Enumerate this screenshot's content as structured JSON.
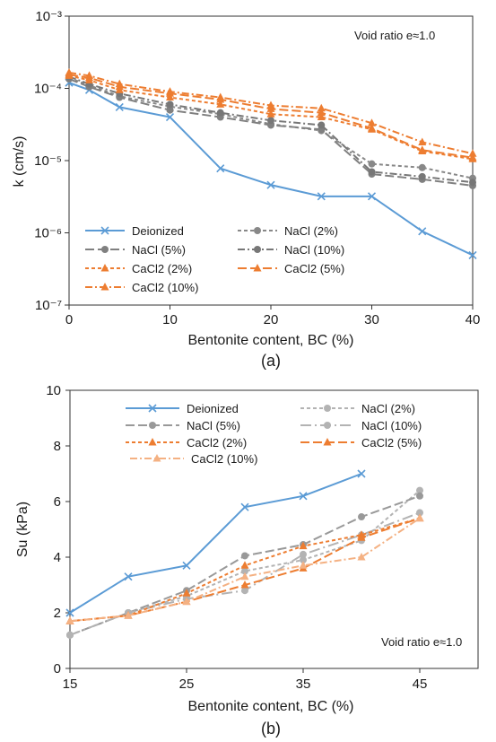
{
  "chart_data": [
    {
      "type": "line",
      "panel_label": "(a)",
      "ylabel": "k (cm/s)",
      "xlabel": "Bentonite content, BC (%)",
      "annotation": "Void ratio e≈1.0",
      "y_scale": "log",
      "xlim": [
        0,
        40
      ],
      "ylim": [
        1e-07,
        0.001
      ],
      "x_ticks": [
        "0",
        "10",
        "20",
        "30",
        "40"
      ],
      "y_ticks": [
        "10⁻⁷",
        "10⁻⁶",
        "10⁻⁵",
        "10⁻⁴",
        "10⁻³"
      ],
      "legend_position": "bottom-left",
      "series": [
        {
          "name": "Deionized",
          "color": "#5b9bd5",
          "marker": "x",
          "dash": "solid",
          "x": [
            0,
            2,
            5,
            10,
            15,
            20,
            25,
            30,
            35,
            40
          ],
          "y": [
            0.00012,
            9.5e-05,
            5.5e-05,
            4e-05,
            7.8e-06,
            4.6e-06,
            3.2e-06,
            3.2e-06,
            1.05e-06,
            4.9e-07
          ]
        },
        {
          "name": "NaCl (2%)",
          "color": "#888888",
          "marker": "circle",
          "dash": "short-dash",
          "x": [
            0,
            2,
            5,
            10,
            15,
            20,
            25,
            30,
            35,
            40
          ],
          "y": [
            0.00014,
            0.00011,
            7.8e-05,
            5.6e-05,
            4.4e-05,
            3.2e-05,
            2.6e-05,
            9e-06,
            8e-06,
            5.7e-06
          ]
        },
        {
          "name": "NaCl (5%)",
          "color": "#808080",
          "marker": "circle",
          "dash": "long-dash",
          "x": [
            0,
            2,
            5,
            10,
            15,
            20,
            25,
            30,
            35,
            40
          ],
          "y": [
            0.000135,
            0.000105,
            7.5e-05,
            5e-05,
            4e-05,
            3.1e-05,
            2.7e-05,
            6.5e-06,
            5.5e-06,
            4.5e-06
          ]
        },
        {
          "name": "NaCl (10%)",
          "color": "#777777",
          "marker": "circle",
          "dash": "dash-dot",
          "x": [
            0,
            2,
            5,
            10,
            15,
            20,
            25,
            30,
            35,
            40
          ],
          "y": [
            0.000145,
            0.000115,
            8.5e-05,
            6e-05,
            4.6e-05,
            3.6e-05,
            3.1e-05,
            7e-06,
            6e-06,
            5e-06
          ]
        },
        {
          "name": "CaCl2 (2%)",
          "color": "#ed7d31",
          "marker": "triangle",
          "dash": "short-dash",
          "x": [
            0,
            2,
            5,
            10,
            15,
            20,
            25,
            30,
            35,
            40
          ],
          "y": [
            0.00015,
            0.00013,
            9.5e-05,
            7.5e-05,
            6e-05,
            4.4e-05,
            4e-05,
            2.7e-05,
            1.35e-05,
            1.05e-05
          ]
        },
        {
          "name": "CaCl2 (5%)",
          "color": "#ed7d31",
          "marker": "triangle",
          "dash": "long-dash",
          "x": [
            0,
            2,
            5,
            10,
            15,
            20,
            25,
            30,
            35,
            40
          ],
          "y": [
            0.000155,
            0.00014,
            0.000105,
            8.5e-05,
            7e-05,
            5.2e-05,
            4.6e-05,
            2.8e-05,
            1.4e-05,
            1.1e-05
          ]
        },
        {
          "name": "CaCl2 (10%)",
          "color": "#ed7d31",
          "marker": "triangle",
          "dash": "dash-dot",
          "x": [
            0,
            2,
            5,
            10,
            15,
            20,
            25,
            30,
            35,
            40
          ],
          "y": [
            0.000165,
            0.00015,
            0.000115,
            9e-05,
            7.5e-05,
            5.8e-05,
            5.3e-05,
            3.3e-05,
            1.8e-05,
            1.25e-05
          ]
        }
      ]
    },
    {
      "type": "line",
      "panel_label": "(b)",
      "ylabel": "Su (kPa)",
      "xlabel": "Bentonite content, BC (%)",
      "annotation": "Void ratio e≈1.0",
      "xlim": [
        15,
        50
      ],
      "ylim": [
        0,
        10
      ],
      "x_ticks": [
        "15",
        "25",
        "35",
        "45"
      ],
      "y_ticks": [
        "0",
        "2",
        "4",
        "6",
        "8",
        "10"
      ],
      "legend_position": "top",
      "series": [
        {
          "name": "Deionized",
          "color": "#5b9bd5",
          "marker": "x",
          "dash": "solid",
          "x": [
            15,
            20,
            25,
            30,
            35,
            40
          ],
          "y": [
            2.0,
            3.3,
            3.7,
            5.8,
            6.2,
            7.0
          ]
        },
        {
          "name": "NaCl (2%)",
          "color": "#b3b3b3",
          "marker": "circle",
          "dash": "short-dash",
          "x": [
            15,
            20,
            25,
            30,
            35,
            40,
            45
          ],
          "y": [
            1.2,
            2.0,
            2.6,
            3.5,
            3.9,
            4.6,
            6.4
          ]
        },
        {
          "name": "NaCl (5%)",
          "color": "#999999",
          "marker": "circle",
          "dash": "long-dash",
          "x": [
            15,
            20,
            25,
            30,
            35,
            40,
            45
          ],
          "y": [
            1.2,
            2.0,
            2.8,
            4.05,
            4.45,
            5.45,
            6.2
          ]
        },
        {
          "name": "NaCl (10%)",
          "color": "#b3b3b3",
          "marker": "circle",
          "dash": "long-dash-dot",
          "x": [
            15,
            20,
            25,
            30,
            35,
            40,
            45
          ],
          "y": [
            1.2,
            2.0,
            2.5,
            2.8,
            4.1,
            4.8,
            5.6
          ]
        },
        {
          "name": "CaCl2 (2%)",
          "color": "#ed7d31",
          "marker": "triangle",
          "dash": "short-dash",
          "x": [
            15,
            20,
            25,
            30,
            35,
            40,
            45
          ],
          "y": [
            1.7,
            1.9,
            2.7,
            3.7,
            4.4,
            4.8,
            5.4
          ]
        },
        {
          "name": "CaCl2 (5%)",
          "color": "#ed7d31",
          "marker": "triangle",
          "dash": "long-dash",
          "x": [
            15,
            20,
            25,
            30,
            35,
            40,
            45
          ],
          "y": [
            1.7,
            1.9,
            2.4,
            3.0,
            3.6,
            4.7,
            5.4
          ]
        },
        {
          "name": "CaCl2 (10%)",
          "color": "#f4b183",
          "marker": "triangle",
          "dash": "dash-dot",
          "x": [
            15,
            20,
            25,
            30,
            35,
            40,
            45
          ],
          "y": [
            1.7,
            1.9,
            2.4,
            3.3,
            3.7,
            4.0,
            5.4
          ]
        }
      ]
    }
  ]
}
